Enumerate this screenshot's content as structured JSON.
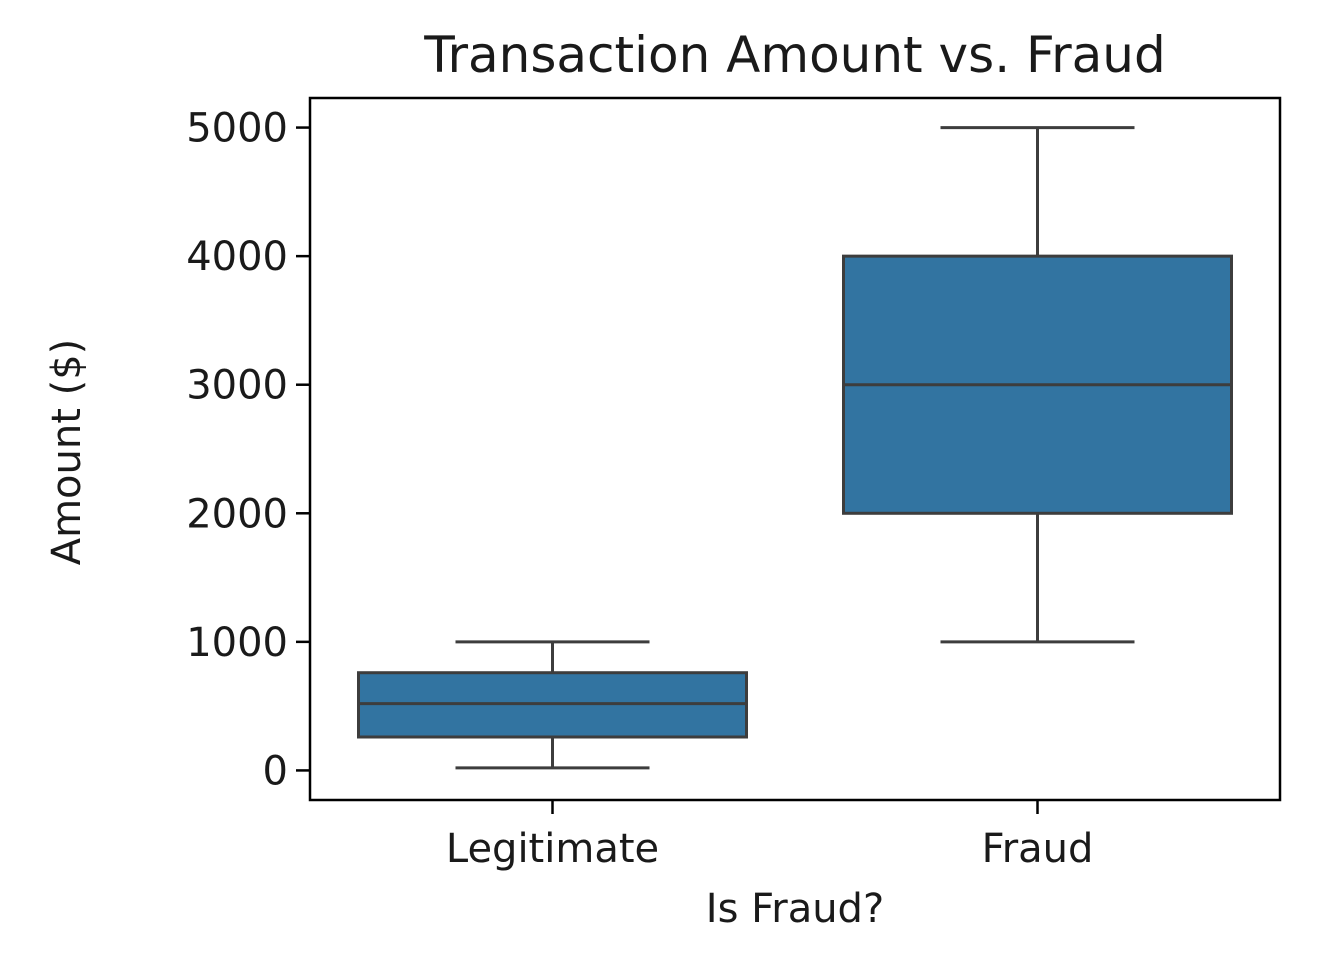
{
  "chart_data": {
    "type": "boxplot",
    "title": "Transaction Amount vs. Fraud",
    "xlabel": "Is Fraud?",
    "ylabel": "Amount ($)",
    "ylim": [
      -230,
      5230
    ],
    "yticks": [
      0,
      1000,
      2000,
      3000,
      4000,
      5000
    ],
    "ytick_labels": [
      "0",
      "1000",
      "2000",
      "3000",
      "4000",
      "5000"
    ],
    "categories": [
      "Legitimate",
      "Fraud"
    ],
    "boxes": [
      {
        "category": "Legitimate",
        "whisker_low": 20,
        "q1": 260,
        "median": 520,
        "q3": 760,
        "whisker_high": 1000
      },
      {
        "category": "Fraud",
        "whisker_low": 1000,
        "q1": 2000,
        "median": 3000,
        "q3": 4000,
        "whisker_high": 5000
      }
    ],
    "grid": false,
    "colors": {
      "box_fill": "#3274a1",
      "line": "#3d3d3d",
      "frame": "#000000",
      "text": "#1a1a1a"
    }
  }
}
